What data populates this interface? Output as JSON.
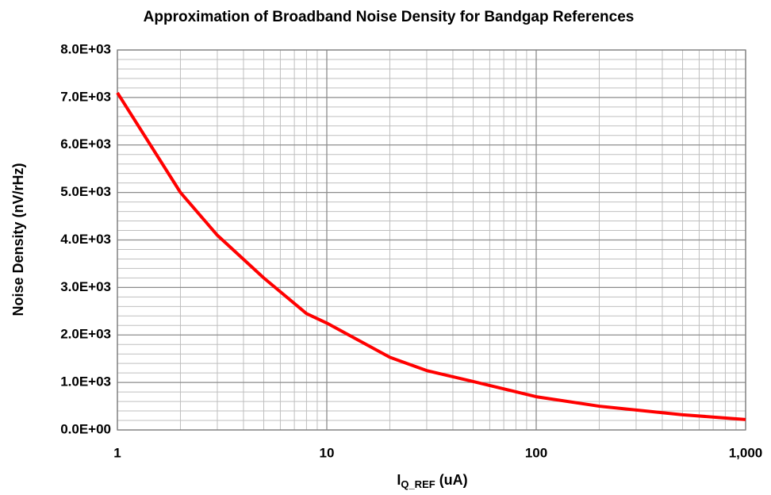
{
  "chart_data": {
    "type": "line",
    "title": "Approximation of Broadband Noise Density for Bandgap References",
    "x_label": {
      "main": "I",
      "sub": "Q_REF",
      "rest": " (uA)"
    },
    "y_label": "Noise Density (nV/rHz)",
    "x": [
      1,
      2,
      3,
      5,
      8,
      10,
      20,
      30,
      50,
      100,
      200,
      300,
      500,
      1000
    ],
    "series": [
      {
        "name": "Noise Density",
        "color": "#ff0000",
        "values": [
          7100,
          5000,
          4100,
          3200,
          2450,
          2250,
          1530,
          1250,
          1020,
          700,
          500,
          420,
          320,
          220
        ]
      }
    ],
    "xscale": "log",
    "xlim": [
      1,
      1000
    ],
    "xticks": [
      1,
      10,
      100,
      {
        "value": 1000,
        "label": "1,000"
      }
    ],
    "ylim": [
      0,
      8000
    ],
    "yticks": [
      {
        "value": 0,
        "label": "0.0E+00"
      },
      {
        "value": 1000,
        "label": "1.0E+03"
      },
      {
        "value": 2000,
        "label": "2.0E+03"
      },
      {
        "value": 3000,
        "label": "3.0E+03"
      },
      {
        "value": 4000,
        "label": "4.0E+03"
      },
      {
        "value": 5000,
        "label": "5.0E+03"
      },
      {
        "value": 6000,
        "label": "6.0E+03"
      },
      {
        "value": 7000,
        "label": "7.0E+03"
      },
      {
        "value": 8000,
        "label": "8.0E+03"
      }
    ],
    "grid": true,
    "minor_grid": true
  }
}
